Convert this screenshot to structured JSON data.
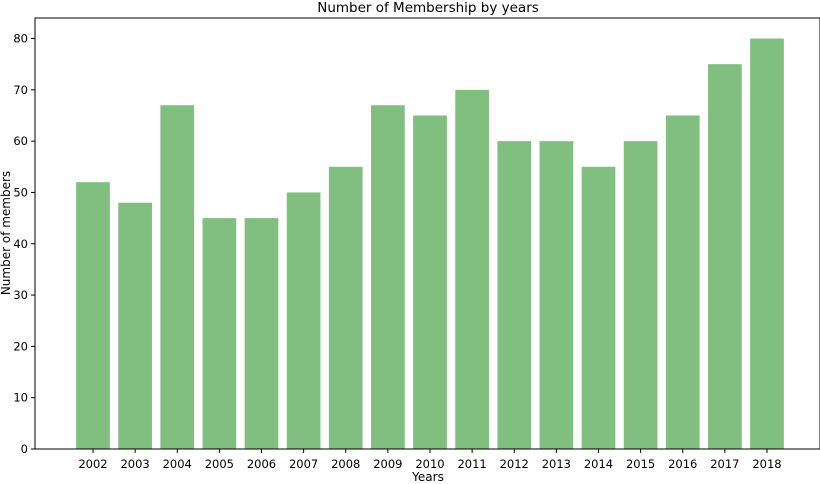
{
  "chart_data": {
    "type": "bar",
    "title": "Number of Membership by years",
    "xlabel": "Years",
    "ylabel": "Number of members",
    "categories": [
      "2002",
      "2003",
      "2004",
      "2005",
      "2006",
      "2007",
      "2008",
      "2009",
      "2010",
      "2011",
      "2012",
      "2013",
      "2014",
      "2015",
      "2016",
      "2017",
      "2018"
    ],
    "values": [
      52,
      48,
      67,
      45,
      45,
      50,
      55,
      67,
      65,
      70,
      60,
      60,
      55,
      60,
      65,
      75,
      80
    ],
    "ylim": [
      0,
      84
    ],
    "yticks": [
      0,
      10,
      20,
      30,
      40,
      50,
      60,
      70,
      80
    ],
    "bar_color": "#80bf80",
    "grid": false,
    "legend": "none"
  }
}
